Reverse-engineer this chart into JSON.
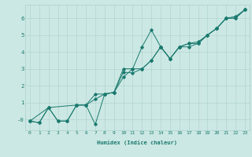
{
  "title": "",
  "xlabel": "Humidex (Indice chaleur)",
  "ylabel": "",
  "bg_color": "#cce8e4",
  "line_color": "#1a7a6e",
  "grid_color": "#aacfcb",
  "xlim": [
    -0.5,
    23.5
  ],
  "ylim": [
    -0.65,
    6.8
  ],
  "x_ticks": [
    0,
    1,
    2,
    3,
    4,
    5,
    6,
    7,
    8,
    9,
    10,
    11,
    12,
    13,
    14,
    15,
    16,
    17,
    18,
    19,
    20,
    21,
    22,
    23
  ],
  "y_ticks": [
    0,
    1,
    2,
    3,
    4,
    5,
    6
  ],
  "y_tick_labels": [
    "-0",
    "1",
    "2",
    "3",
    "4",
    "5",
    "6"
  ],
  "series1_x": [
    0,
    1,
    2,
    3,
    4,
    5,
    6,
    7,
    8,
    9,
    10,
    11,
    12,
    13,
    14,
    15,
    16,
    17,
    18,
    19,
    20,
    21,
    22,
    23
  ],
  "series1_y": [
    -0.1,
    -0.2,
    0.7,
    -0.1,
    -0.1,
    0.85,
    0.85,
    -0.3,
    1.5,
    1.6,
    3.0,
    3.0,
    4.3,
    5.3,
    4.3,
    3.6,
    4.3,
    4.5,
    4.6,
    5.0,
    5.4,
    6.0,
    6.1,
    6.5
  ],
  "series2_x": [
    0,
    2,
    5,
    6,
    7,
    8,
    9,
    10,
    11,
    12,
    13,
    14,
    15,
    16,
    17,
    18,
    19,
    20,
    21,
    22,
    23
  ],
  "series2_y": [
    -0.1,
    0.7,
    0.85,
    0.85,
    1.2,
    1.5,
    1.6,
    2.5,
    3.0,
    3.0,
    3.5,
    4.3,
    3.6,
    4.3,
    4.5,
    4.5,
    5.0,
    5.4,
    6.0,
    6.0,
    6.5
  ],
  "series3_x": [
    0,
    1,
    2,
    3,
    4,
    5,
    6,
    7,
    8,
    9,
    10,
    11,
    12,
    13,
    14,
    15,
    16,
    17,
    18,
    19,
    20,
    21,
    22,
    23
  ],
  "series3_y": [
    -0.1,
    -0.2,
    0.7,
    -0.1,
    -0.1,
    0.85,
    0.85,
    1.5,
    1.5,
    1.6,
    2.8,
    2.75,
    3.0,
    3.5,
    4.3,
    3.6,
    4.3,
    4.3,
    4.5,
    5.0,
    5.4,
    6.0,
    6.0,
    6.5
  ],
  "xlabel_fontsize": 5.0,
  "tick_fontsize": 4.5,
  "ytick_fontsize": 5.2,
  "linewidth": 0.7,
  "markersize": 1.8
}
